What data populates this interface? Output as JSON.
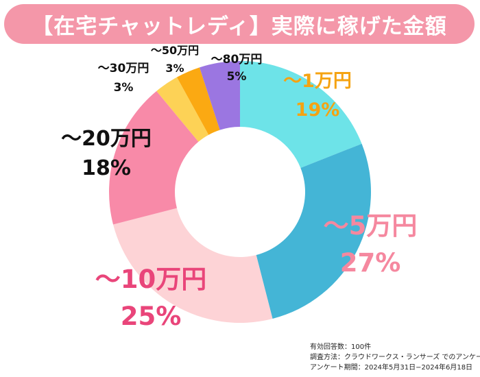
{
  "title": "【在宅チャットレディ】実際に稼げた金額",
  "chart_data": {
    "type": "pie",
    "donut": true,
    "categories": [
      "〜1万円",
      "〜5万円",
      "〜10万円",
      "〜20万円",
      "〜30万円",
      "〜50万円",
      "〜80万円"
    ],
    "values": [
      19,
      27,
      25,
      18,
      3,
      3,
      5
    ],
    "value_labels": [
      "19%",
      "27%",
      "25%",
      "18%",
      "3%",
      "3%",
      "5%"
    ],
    "colors": [
      "#6de3e8",
      "#44b5d6",
      "#fdd3d6",
      "#f88aa8",
      "#fdd256",
      "#fba912",
      "#9b76e1"
    ],
    "label_colors": [
      "#f5a312",
      "#f5889f",
      "#e9457a",
      "#111111",
      "#111111",
      "#111111",
      "#111111"
    ],
    "start_angle": "12 o'clock",
    "direction": "clockwise",
    "legend": "none"
  },
  "footnote": {
    "line1": "有効回答数：100件",
    "line2": "調査方法：クラウドワークス・ランサーズ でのアンケート",
    "line3": "アンケート期間：2024年5月31日−2024年6月18日"
  }
}
